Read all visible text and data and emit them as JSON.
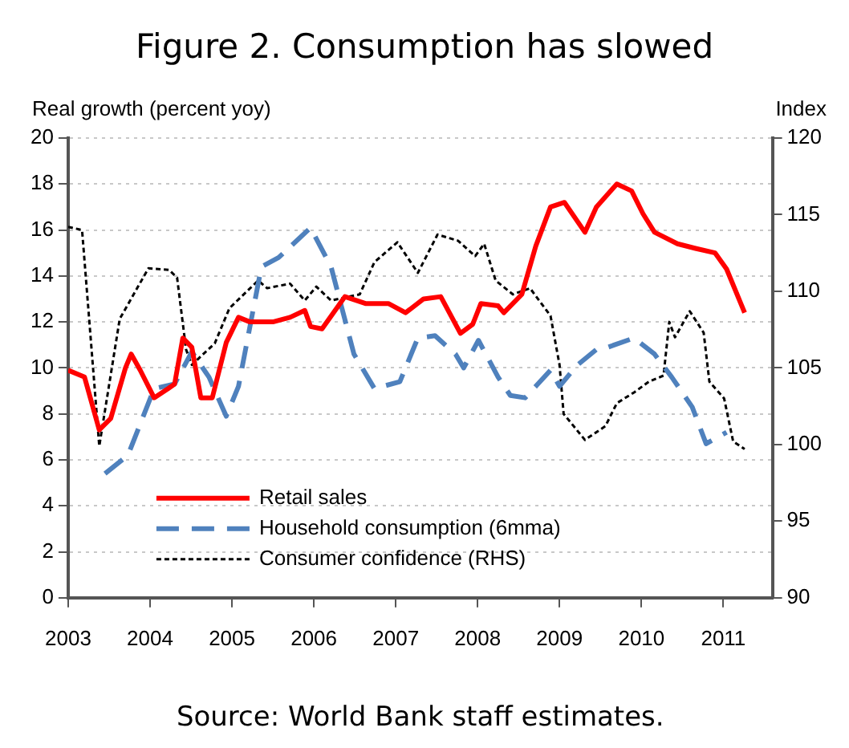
{
  "chart_data": {
    "type": "line",
    "title": "Figure 2. Consumption has slowed",
    "ylabel": "Real growth (percent yoy)",
    "y2label": "Index",
    "xlim": [
      2003,
      2011.6
    ],
    "xticks": [
      2003,
      2004,
      2005,
      2006,
      2007,
      2008,
      2009,
      2010,
      2011
    ],
    "ylim": [
      0,
      20
    ],
    "yticks": [
      0,
      2,
      4,
      6,
      8,
      10,
      12,
      14,
      16,
      18,
      20
    ],
    "y2lim": [
      90,
      120
    ],
    "y2ticks": [
      90,
      95,
      100,
      105,
      110,
      115,
      120
    ],
    "grid": "y",
    "legend": "bottom left",
    "marker": "none",
    "annotations": [
      "Source: World Bank staff estimates."
    ],
    "series": [
      {
        "name": "Retail sales",
        "color": "#ff0000",
        "line_style": "solid",
        "x": [
          2003.0,
          2003.2,
          2003.38,
          2003.52,
          2003.7,
          2003.77,
          2003.88,
          2004.05,
          2004.22,
          2004.3,
          2004.4,
          2004.51,
          2004.62,
          2004.76,
          2004.93,
          2005.08,
          2005.22,
          2005.5,
          2005.71,
          2005.89,
          2005.96,
          2006.1,
          2006.38,
          2006.63,
          2006.91,
          2007.12,
          2007.34,
          2007.55,
          2007.79,
          2007.94,
          2008.04,
          2008.25,
          2008.32,
          2008.54,
          2008.71,
          2008.89,
          2009.06,
          2009.31,
          2009.45,
          2009.7,
          2009.88,
          2010.02,
          2010.16,
          2010.44,
          2010.66,
          2010.9,
          2011.04,
          2011.26
        ],
        "values": [
          9.9,
          9.6,
          7.3,
          7.8,
          10.0,
          10.6,
          9.9,
          8.7,
          9.1,
          9.3,
          11.3,
          10.9,
          8.7,
          8.7,
          11.1,
          12.2,
          12.0,
          12.0,
          12.2,
          12.5,
          11.8,
          11.7,
          13.1,
          12.8,
          12.8,
          12.4,
          13.0,
          13.1,
          11.5,
          11.9,
          12.8,
          12.7,
          12.4,
          13.2,
          15.3,
          17.0,
          17.2,
          15.9,
          17.0,
          18.0,
          17.7,
          16.7,
          15.9,
          15.4,
          15.2,
          15.0,
          14.3,
          12.4
        ]
      },
      {
        "name": "Household consumption (6mma)",
        "color": "#4f81bd",
        "line_style": "dashed",
        "x": [
          2003.45,
          2003.73,
          2004.05,
          2004.3,
          2004.51,
          2004.72,
          2004.93,
          2005.08,
          2005.36,
          2005.57,
          2005.96,
          2006.21,
          2006.49,
          2006.74,
          2007.05,
          2007.27,
          2007.48,
          2007.73,
          2007.83,
          2008.01,
          2008.25,
          2008.4,
          2008.58,
          2008.71,
          2008.89,
          2009.0,
          2009.21,
          2009.45,
          2009.59,
          2009.91,
          2010.16,
          2010.37,
          2010.62,
          2010.79,
          2011.04
        ],
        "values": [
          5.4,
          6.2,
          9.1,
          9.3,
          10.7,
          9.6,
          7.9,
          9.2,
          14.4,
          14.8,
          16.1,
          14.4,
          10.6,
          9.1,
          9.4,
          11.3,
          11.4,
          10.6,
          10.0,
          11.2,
          9.6,
          8.8,
          8.7,
          9.2,
          9.9,
          9.2,
          10.1,
          10.8,
          10.9,
          11.3,
          10.6,
          9.6,
          8.3,
          6.7,
          7.2
        ]
      },
      {
        "name": "Consumer confidence (RHS)",
        "color": "#000000",
        "line_style": "dotted",
        "axis": "y2",
        "x": [
          2003.0,
          2003.17,
          2003.38,
          2003.63,
          2003.8,
          2003.98,
          2004.23,
          2004.33,
          2004.44,
          2004.51,
          2004.65,
          2004.79,
          2004.97,
          2005.32,
          2005.43,
          2005.71,
          2005.89,
          2006.03,
          2006.21,
          2006.56,
          2006.74,
          2007.02,
          2007.27,
          2007.51,
          2007.76,
          2007.97,
          2008.08,
          2008.22,
          2008.43,
          2008.64,
          2008.89,
          2009.0,
          2009.05,
          2009.31,
          2009.56,
          2009.7,
          2009.91,
          2010.09,
          2010.27,
          2010.34,
          2010.41,
          2010.59,
          2010.76,
          2010.83,
          2011.01,
          2011.12,
          2011.26
        ],
        "values": [
          114.2,
          114.0,
          99.9,
          108.2,
          109.8,
          111.5,
          111.4,
          110.9,
          106.2,
          105.2,
          105.9,
          106.6,
          108.9,
          110.7,
          110.2,
          110.5,
          109.4,
          110.3,
          109.4,
          109.8,
          111.9,
          113.2,
          111.2,
          113.7,
          113.3,
          112.3,
          113.1,
          110.7,
          109.8,
          110.2,
          108.4,
          105.2,
          102.0,
          100.3,
          101.2,
          102.7,
          103.4,
          104.1,
          104.5,
          108.0,
          107.0,
          108.7,
          107.3,
          104.1,
          103.0,
          100.2,
          99.7
        ]
      }
    ]
  }
}
